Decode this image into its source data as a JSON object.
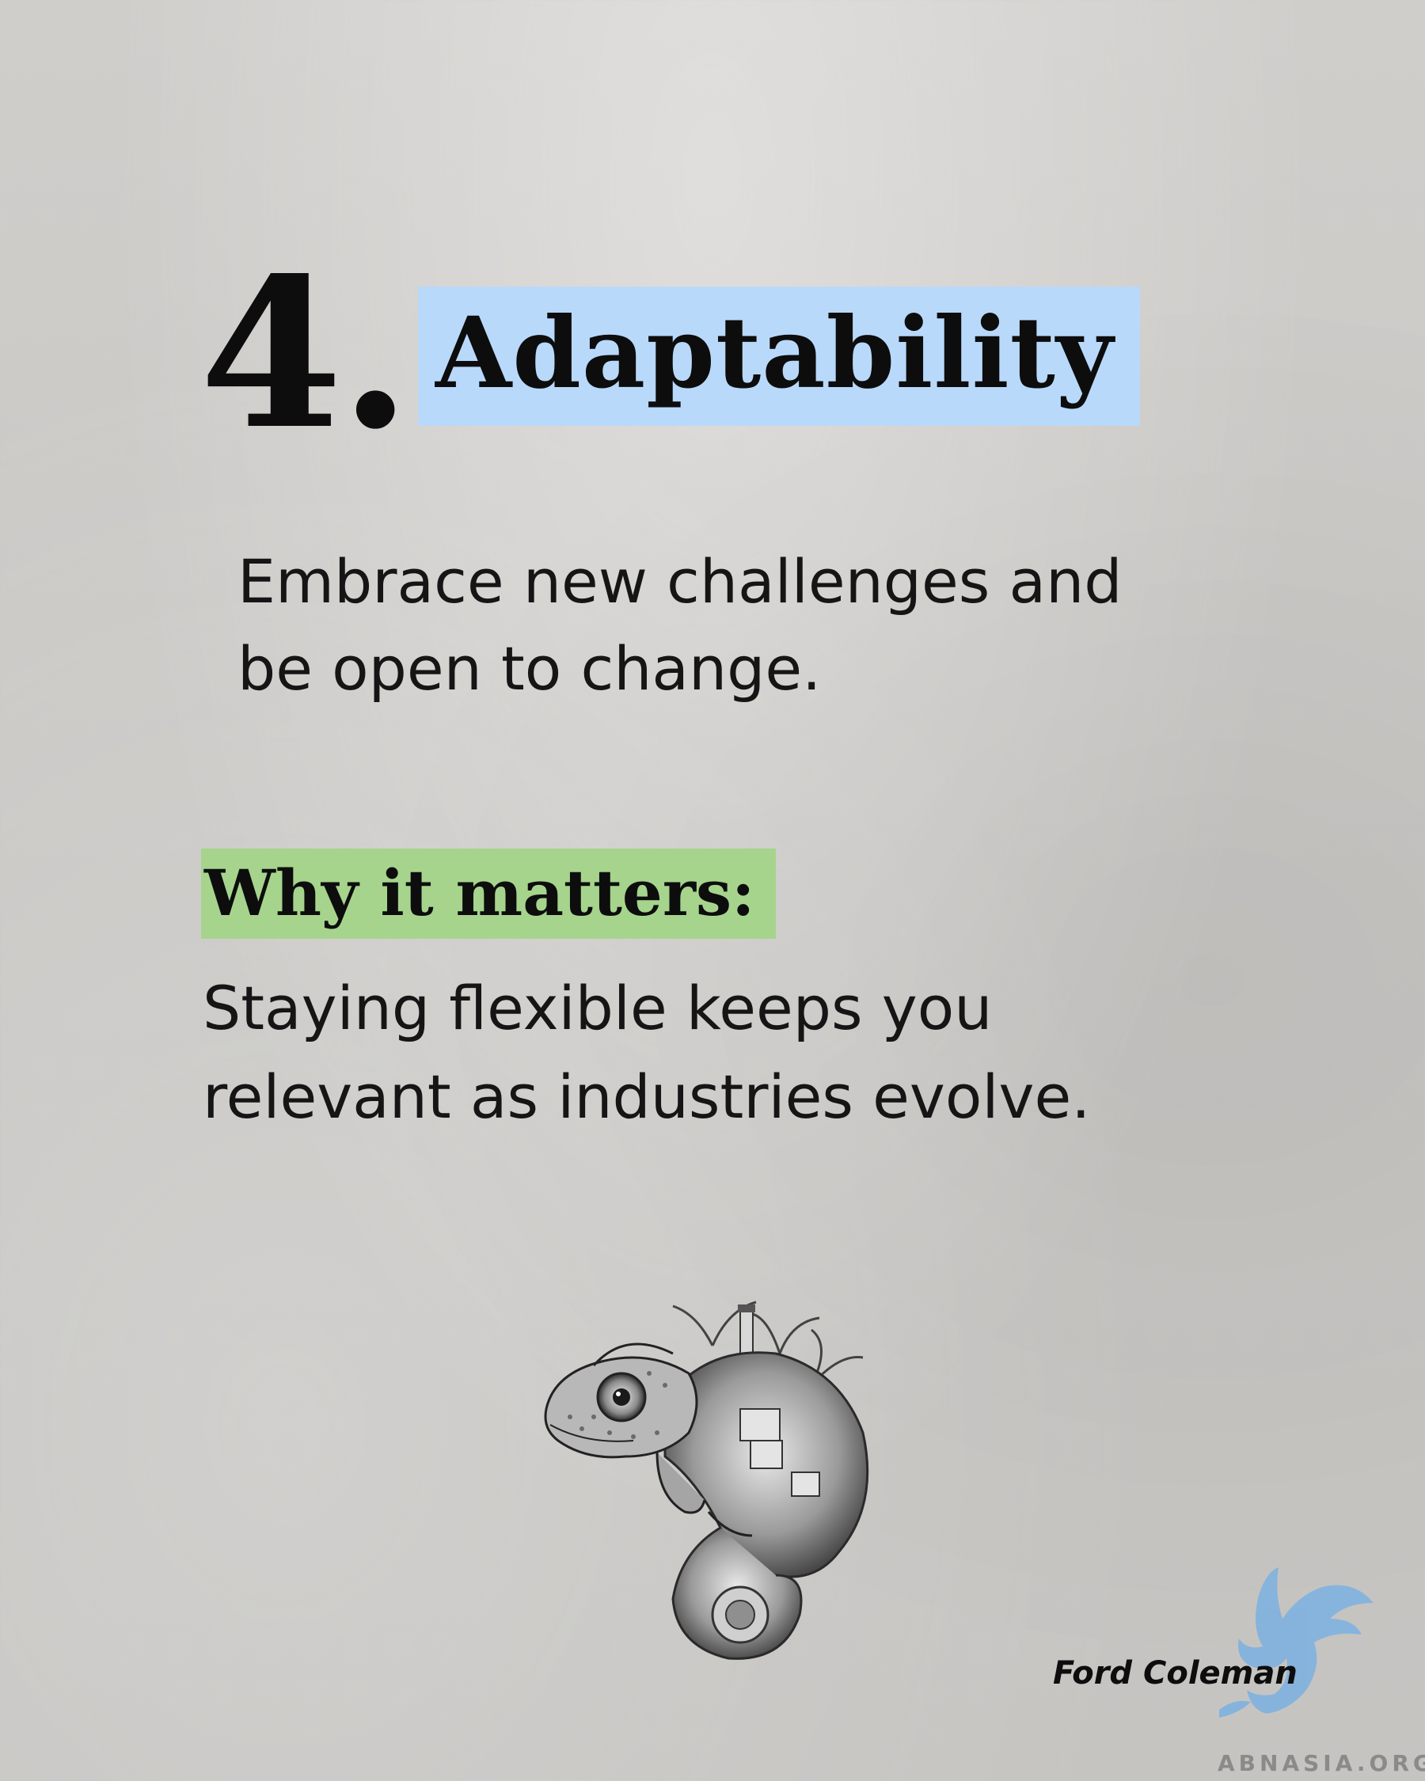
{
  "heading": {
    "number": "4.",
    "title": "Adaptability"
  },
  "intro": {
    "line1": "Embrace new challenges and",
    "line2": "be open to change."
  },
  "why": {
    "label": "Why it matters:",
    "line1": "Staying flexible keeps you",
    "line2": "relevant as industries evolve."
  },
  "footer": {
    "signature": "Ford Coleman",
    "logo_text": "ABNASIA.ORG"
  },
  "colors": {
    "title_highlight": "#b9d9fb",
    "why_highlight": "#a6d48d",
    "logo_blue": "#6fa8dc"
  },
  "icons": {
    "illustration": "chameleon-illustration-icon",
    "logo": "griffin-logo-icon"
  }
}
